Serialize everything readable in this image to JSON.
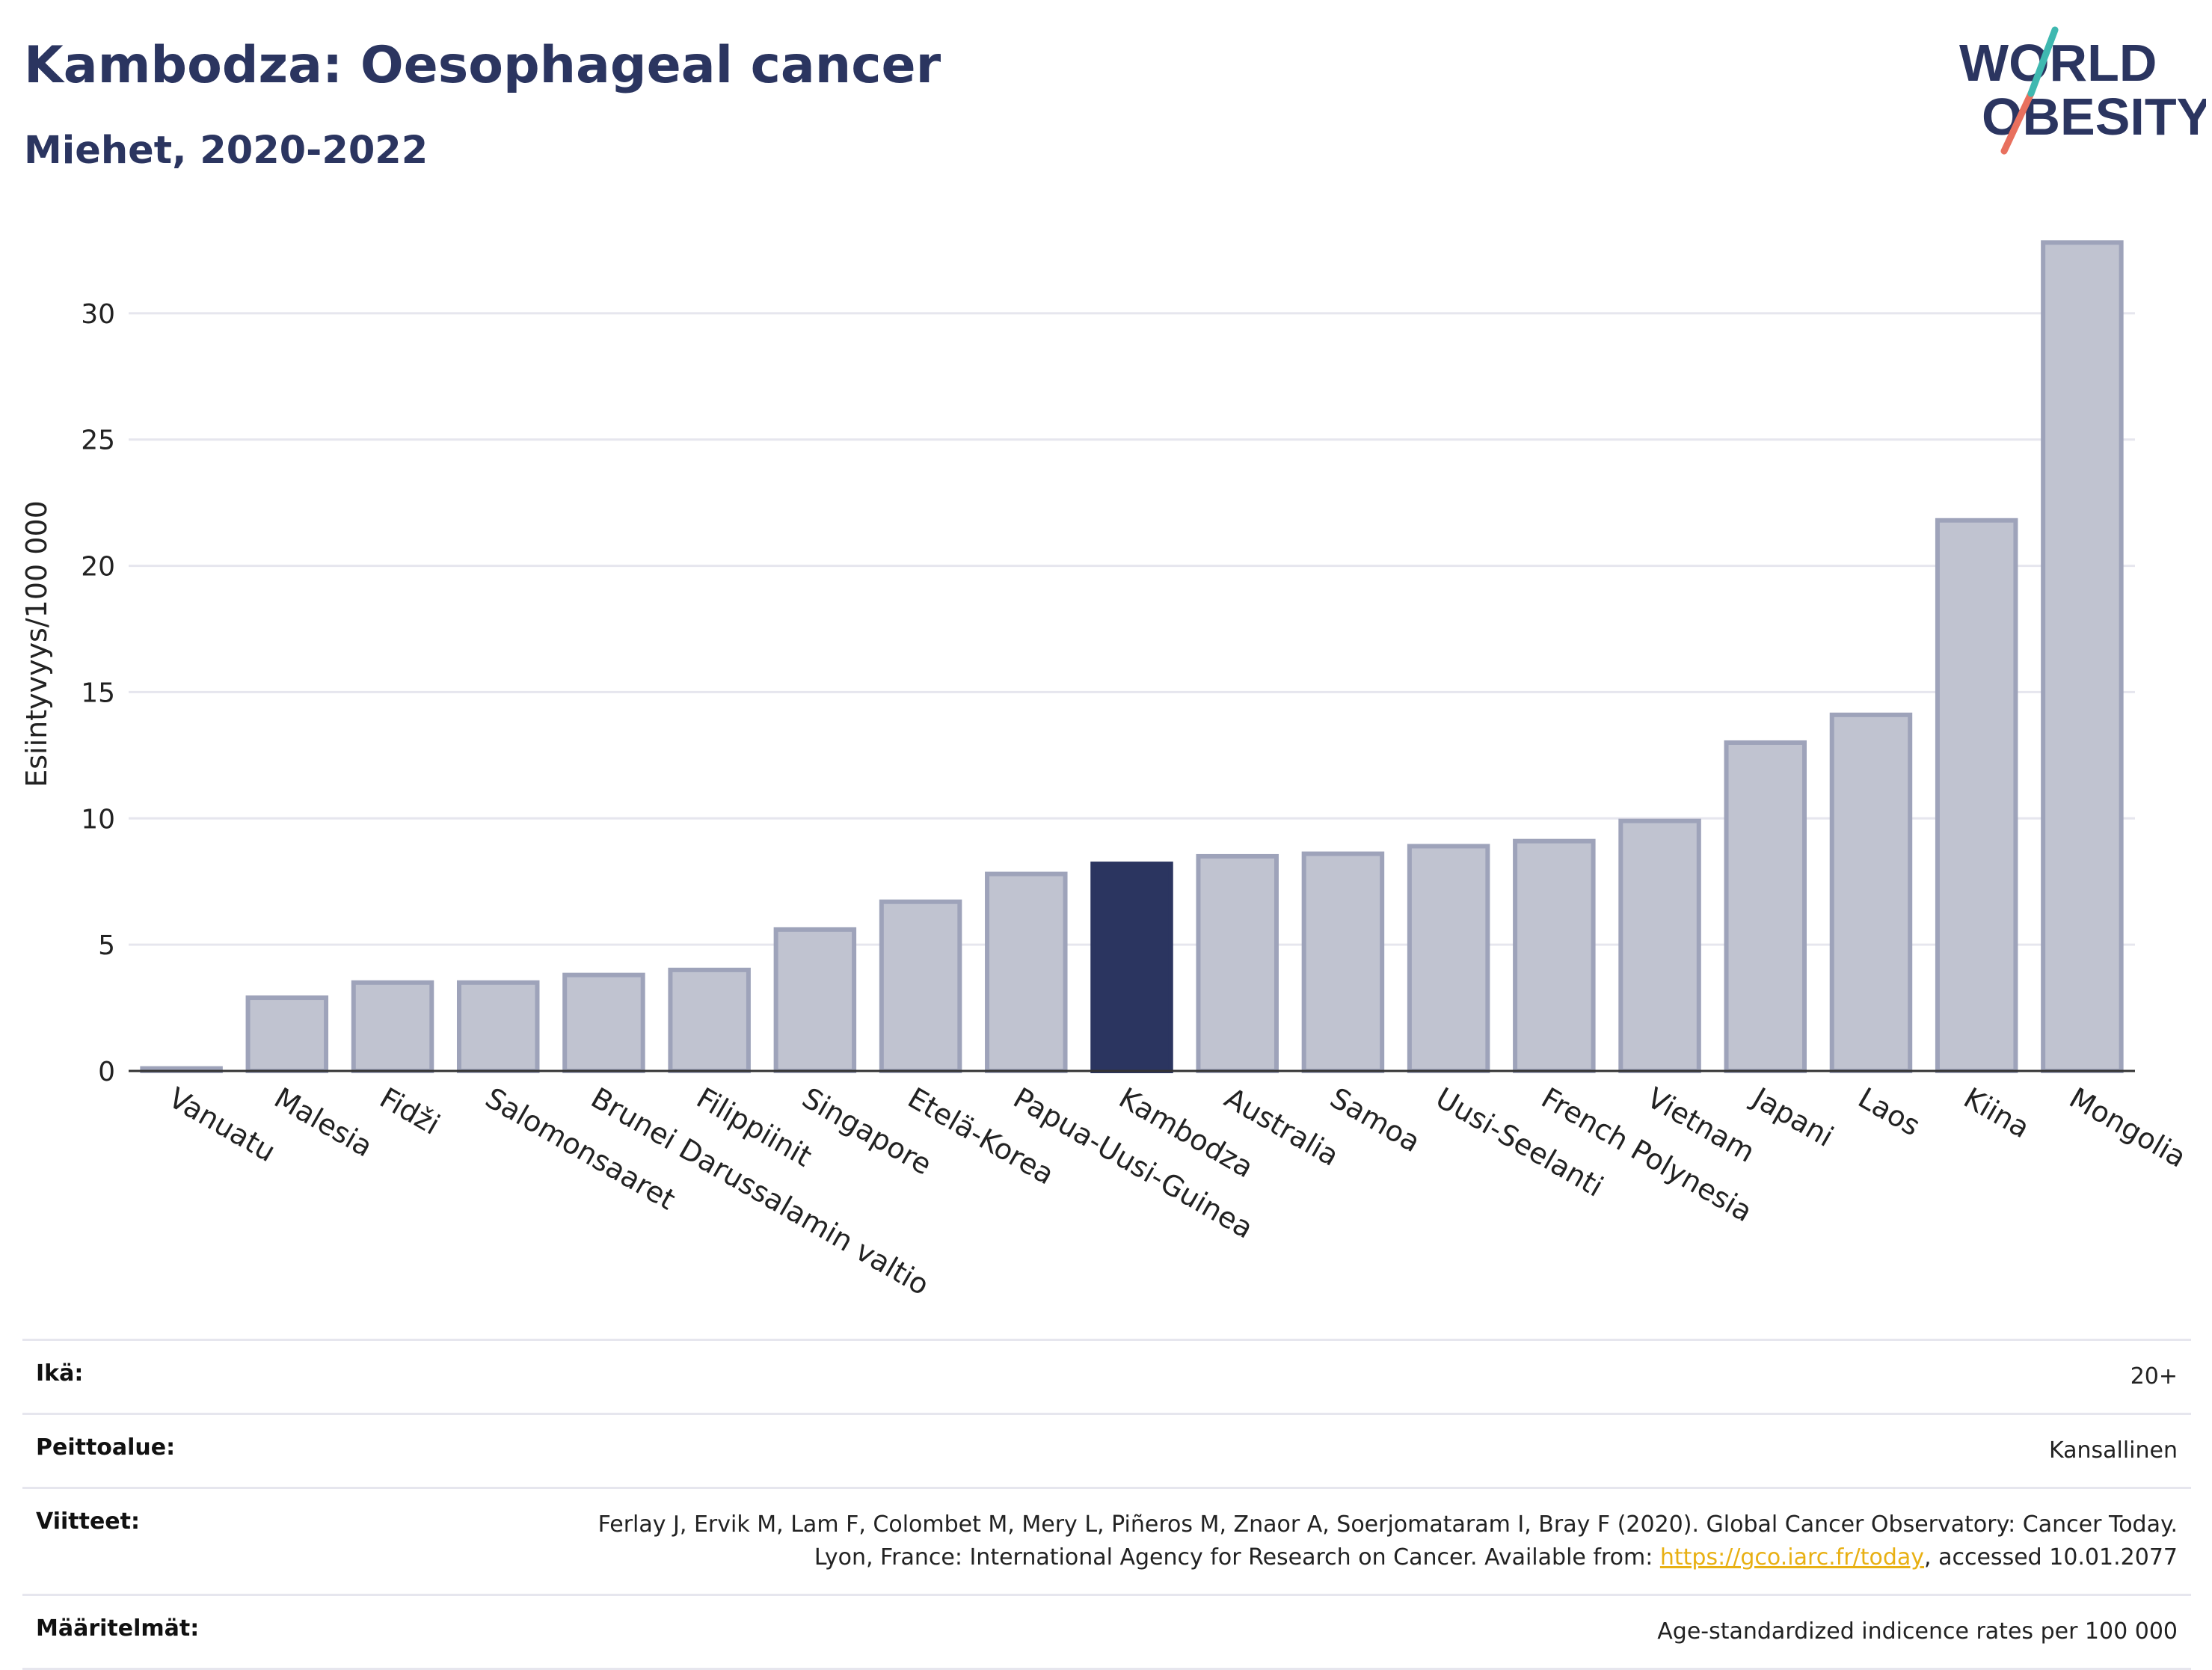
{
  "header": {
    "title": "Kambodza: Oesophageal cancer",
    "subtitle": "Miehet, 2020-2022"
  },
  "logo": {
    "line1": "WORLD",
    "line2": "OBESITY"
  },
  "colors": {
    "bar": "#c0c3d0",
    "bar_stroke": "#9ea3ba",
    "highlight": "#2b3560",
    "title": "#2b3560"
  },
  "chart_data": {
    "type": "bar",
    "categories": [
      "Vanuatu",
      "Malesia",
      "Fidži",
      "Salomonsaaret",
      "Brunei Darussalamin valtio",
      "Filippiinit",
      "Singapore",
      "Etelä-Korea",
      "Papua-Uusi-Guinea",
      "Kambodza",
      "Australia",
      "Samoa",
      "Uusi-Seelanti",
      "French Polynesia",
      "Vietnam",
      "Japani",
      "Laos",
      "Kiina",
      "Mongolia"
    ],
    "values": [
      0.1,
      2.9,
      3.5,
      3.5,
      3.8,
      4.0,
      5.6,
      6.7,
      7.8,
      8.2,
      8.5,
      8.6,
      8.9,
      9.1,
      9.9,
      13.0,
      14.1,
      21.8,
      32.8
    ],
    "highlight": "Kambodza",
    "ylabel": "Esiintyvyys/100 000",
    "ylim": [
      0,
      35
    ],
    "yticks": [
      0,
      5,
      10,
      15,
      20,
      25,
      30
    ],
    "grid": true
  },
  "meta": [
    {
      "label": "Ikä:",
      "value": "20+"
    },
    {
      "label": "Peittoalue:",
      "value": "Kansallinen"
    },
    {
      "label": "Viitteet:",
      "value_pre": "Ferlay J, Ervik M, Lam F, Colombet M, Mery L, Piñeros M, Znaor A, Soerjomataram I, Bray F (2020). Global Cancer Observatory: Cancer Today. Lyon, France: International Agency for Research on Cancer. Available from: ",
      "link": "https://gco.iarc.fr/today",
      "value_post": ", accessed 10.01.2077"
    },
    {
      "label": "Määritelmät:",
      "value": "Age-standardized indicence rates per 100 000"
    }
  ]
}
